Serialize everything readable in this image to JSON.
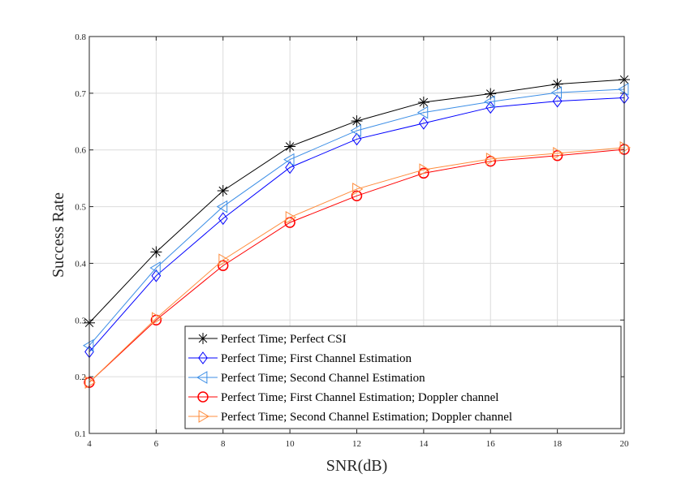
{
  "chart_data": {
    "type": "line",
    "title": "",
    "xlabel": "SNR(dB)",
    "ylabel": "Success Rate",
    "xlim": [
      4,
      20
    ],
    "ylim": [
      0.1,
      0.8
    ],
    "xticks": [
      4,
      6,
      8,
      10,
      12,
      14,
      16,
      18,
      20
    ],
    "yticks": [
      0.1,
      0.2,
      0.3,
      0.4,
      0.5,
      0.6,
      0.7,
      0.8
    ],
    "grid": true,
    "legend_position": "bottom-right",
    "x": [
      4,
      6,
      8,
      10,
      12,
      14,
      16,
      18,
      20
    ],
    "series": [
      {
        "name": "Perfect Time; Perfect CSI",
        "color": "#000000",
        "marker": "asterisk",
        "values": [
          0.295,
          0.42,
          0.528,
          0.606,
          0.651,
          0.684,
          0.699,
          0.716,
          0.724
        ]
      },
      {
        "name": "Perfect Time; First Channel Estimation",
        "color": "#0000ff",
        "marker": "diamond",
        "values": [
          0.244,
          0.378,
          0.479,
          0.569,
          0.619,
          0.647,
          0.675,
          0.686,
          0.692
        ]
      },
      {
        "name": "Perfect Time; Second Channel Estimation",
        "color": "#3c8ee6",
        "marker": "triangle-left",
        "values": [
          0.255,
          0.392,
          0.5,
          0.583,
          0.634,
          0.666,
          0.685,
          0.701,
          0.707
        ]
      },
      {
        "name": "Perfect Time; First Channel Estimation; Doppler channel",
        "color": "#ff0000",
        "marker": "circle",
        "values": [
          0.19,
          0.3,
          0.396,
          0.472,
          0.519,
          0.559,
          0.58,
          0.59,
          0.601
        ]
      },
      {
        "name": "Perfect Time; Second Channel Estimation; Doppler channel",
        "color": "#ff8c3c",
        "marker": "triangle-right",
        "values": [
          0.19,
          0.303,
          0.406,
          0.481,
          0.531,
          0.565,
          0.584,
          0.594,
          0.604
        ]
      }
    ]
  }
}
